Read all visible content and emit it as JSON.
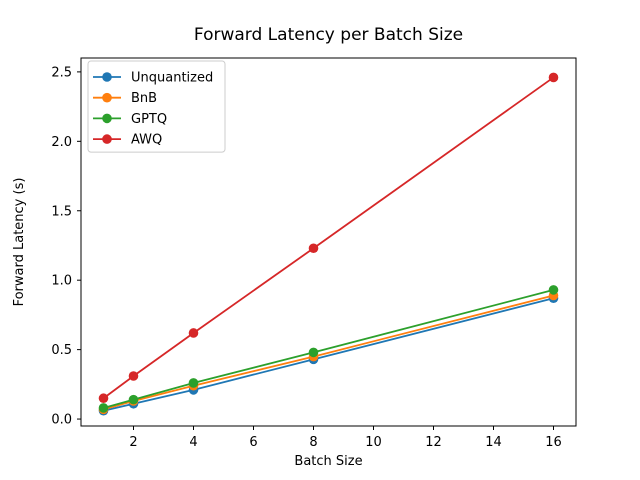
{
  "chart_data": {
    "type": "line",
    "title": "Forward Latency per Batch Size",
    "xlabel": "Batch Size",
    "ylabel": "Forward Latency (s)",
    "x": [
      1,
      2,
      4,
      8,
      16
    ],
    "series": [
      {
        "name": "Unquantized",
        "color": "#1f77b4",
        "marker": "o",
        "values": [
          0.06,
          0.11,
          0.21,
          0.43,
          0.87
        ]
      },
      {
        "name": "BnB",
        "color": "#ff7f0e",
        "marker": "o",
        "values": [
          0.07,
          0.13,
          0.24,
          0.45,
          0.89
        ]
      },
      {
        "name": "GPTQ",
        "color": "#2ca02c",
        "marker": "o",
        "values": [
          0.08,
          0.14,
          0.26,
          0.48,
          0.93
        ]
      },
      {
        "name": "AWQ",
        "color": "#d62728",
        "marker": "o",
        "values": [
          0.15,
          0.31,
          0.62,
          1.23,
          2.46
        ]
      }
    ],
    "xlim": [
      0.25,
      16.75
    ],
    "ylim": [
      -0.05,
      2.6
    ],
    "xticks": [
      2,
      4,
      6,
      8,
      10,
      12,
      14,
      16
    ],
    "xtick_labels": [
      "2",
      "4",
      "6",
      "8",
      "10",
      "12",
      "14",
      "16"
    ],
    "yticks": [
      0,
      0.5,
      1,
      1.5,
      2,
      2.5
    ],
    "ytick_labels": [
      "0.0",
      "0.5",
      "1.0",
      "1.5",
      "2.0",
      "2.5"
    ],
    "grid": false,
    "legend": {
      "position": "upper left",
      "entries": [
        "Unquantized",
        "BnB",
        "GPTQ",
        "AWQ"
      ],
      "frame_color": "#cccccc",
      "frame_fill": "#ffffff"
    },
    "background": "#ffffff",
    "spine_color": "#000000",
    "text_color": "#000000"
  }
}
